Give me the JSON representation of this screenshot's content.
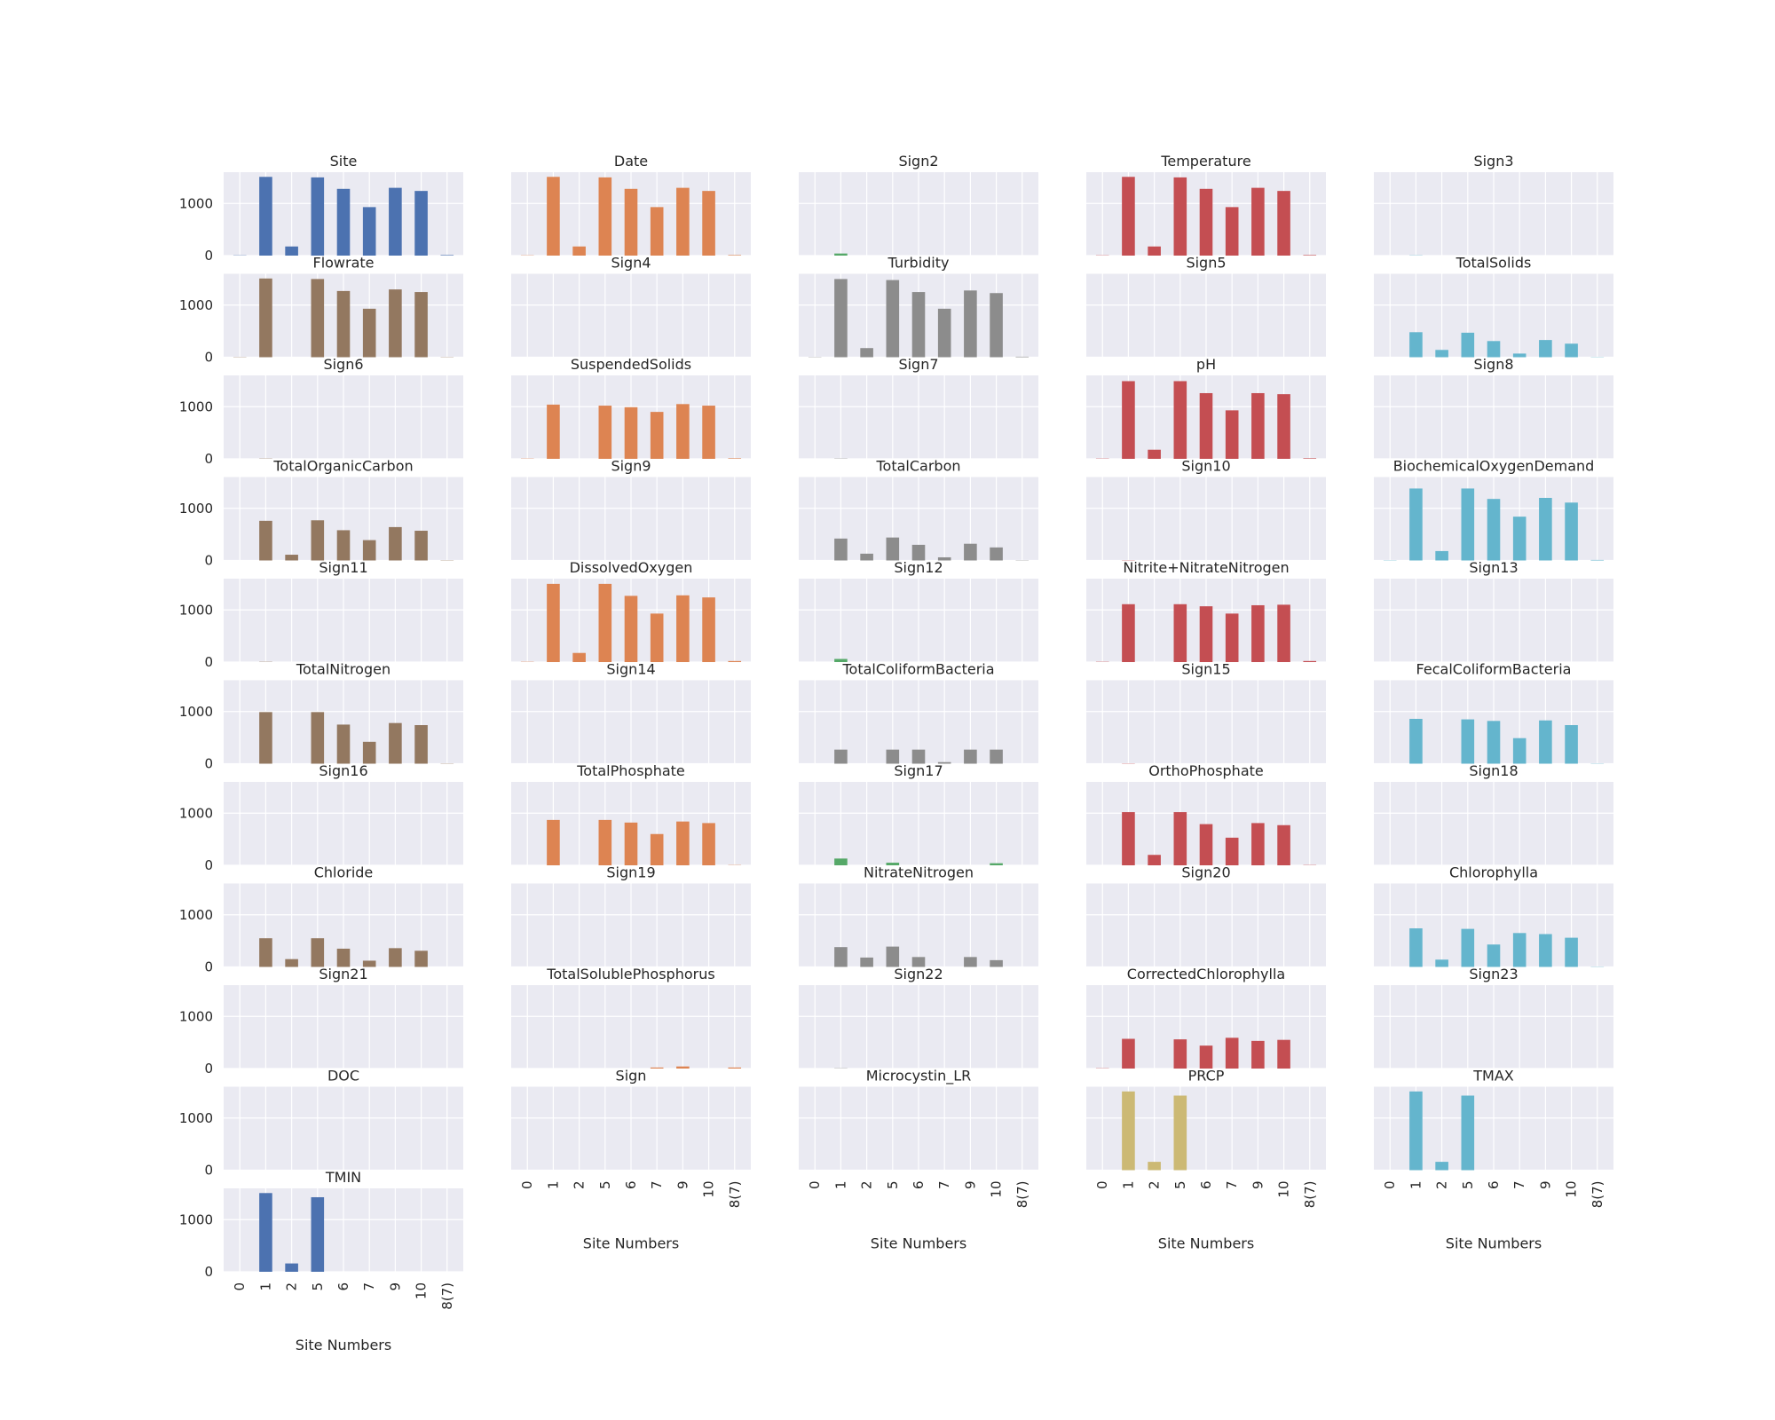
{
  "chart_data": {
    "type": "bar",
    "categories": [
      "0",
      "1",
      "2",
      "5",
      "6",
      "7",
      "9",
      "10",
      "8(7)"
    ],
    "yticks": [
      0,
      1000
    ],
    "ylim": [
      0,
      1600
    ],
    "xlabel": "Site Numbers",
    "palette": [
      "#4c72b0",
      "#dd8452",
      "#55a868",
      "#c44e52",
      "#8172b3",
      "#937860",
      "#da8bc3",
      "#8c8c8c",
      "#ccb974",
      "#64b5cd"
    ],
    "panels": [
      {
        "title": "Site",
        "color": "#4c72b0",
        "values": [
          5,
          1510,
          175,
          1500,
          1280,
          930,
          1300,
          1240,
          10
        ]
      },
      {
        "title": "Date",
        "color": "#dd8452",
        "values": [
          5,
          1510,
          175,
          1500,
          1280,
          930,
          1300,
          1240,
          10
        ]
      },
      {
        "title": "Sign2",
        "color": "#55a868",
        "values": [
          0,
          40,
          0,
          0,
          0,
          0,
          0,
          0,
          0
        ]
      },
      {
        "title": "Temperature",
        "color": "#c44e52",
        "values": [
          5,
          1510,
          175,
          1500,
          1280,
          930,
          1300,
          1240,
          10
        ]
      },
      {
        "title": "Sign3",
        "color": "#64b5cd",
        "values": [
          0,
          5,
          0,
          0,
          0,
          0,
          0,
          0,
          0
        ]
      },
      {
        "title": "Flowrate",
        "color": "#937860",
        "values": [
          5,
          1510,
          0,
          1500,
          1270,
          930,
          1300,
          1250,
          5
        ]
      },
      {
        "title": "Sign4",
        "color": "#dd8452",
        "values": [
          0,
          0,
          0,
          0,
          0,
          0,
          0,
          0,
          0
        ]
      },
      {
        "title": "Turbidity",
        "color": "#8c8c8c",
        "values": [
          5,
          1500,
          175,
          1480,
          1250,
          930,
          1280,
          1230,
          10
        ]
      },
      {
        "title": "Sign5",
        "color": "#c44e52",
        "values": [
          0,
          0,
          0,
          0,
          0,
          0,
          0,
          0,
          0
        ]
      },
      {
        "title": "TotalSolids",
        "color": "#64b5cd",
        "values": [
          0,
          480,
          140,
          470,
          310,
          70,
          330,
          260,
          5
        ]
      },
      {
        "title": "Sign6",
        "color": "#937860",
        "values": [
          0,
          5,
          0,
          0,
          0,
          0,
          0,
          0,
          0
        ]
      },
      {
        "title": "SuspendedSolids",
        "color": "#dd8452",
        "values": [
          5,
          1040,
          0,
          1020,
          990,
          900,
          1050,
          1020,
          10
        ]
      },
      {
        "title": "Sign7",
        "color": "#8c8c8c",
        "values": [
          0,
          5,
          0,
          0,
          0,
          0,
          0,
          0,
          0
        ]
      },
      {
        "title": "pH",
        "color": "#c44e52",
        "values": [
          5,
          1490,
          175,
          1490,
          1260,
          930,
          1260,
          1240,
          10
        ]
      },
      {
        "title": "Sign8",
        "color": "#64b5cd",
        "values": [
          0,
          0,
          0,
          0,
          0,
          0,
          0,
          0,
          0
        ]
      },
      {
        "title": "TotalOrganicCarbon",
        "color": "#937860",
        "values": [
          0,
          760,
          110,
          770,
          580,
          390,
          640,
          570,
          5
        ]
      },
      {
        "title": "Sign9",
        "color": "#dd8452",
        "values": [
          0,
          0,
          0,
          0,
          0,
          0,
          0,
          0,
          0
        ]
      },
      {
        "title": "TotalCarbon",
        "color": "#8c8c8c",
        "values": [
          0,
          420,
          130,
          440,
          300,
          60,
          320,
          250,
          5
        ]
      },
      {
        "title": "Sign10",
        "color": "#c44e52",
        "values": [
          0,
          5,
          0,
          0,
          0,
          0,
          0,
          0,
          0
        ]
      },
      {
        "title": "BiochemicalOxygenDemand",
        "color": "#64b5cd",
        "values": [
          5,
          1380,
          180,
          1380,
          1180,
          840,
          1200,
          1110,
          10
        ]
      },
      {
        "title": "Sign11",
        "color": "#937860",
        "values": [
          0,
          5,
          0,
          0,
          0,
          0,
          0,
          0,
          0
        ]
      },
      {
        "title": "DissolvedOxygen",
        "color": "#dd8452",
        "values": [
          5,
          1500,
          175,
          1500,
          1270,
          930,
          1280,
          1240,
          20
        ]
      },
      {
        "title": "Sign12",
        "color": "#55a868",
        "values": [
          0,
          60,
          0,
          0,
          0,
          0,
          0,
          0,
          0
        ]
      },
      {
        "title": "Nitrite+NitrateNitrogen",
        "color": "#c44e52",
        "values": [
          5,
          1110,
          0,
          1110,
          1070,
          930,
          1090,
          1100,
          20
        ]
      },
      {
        "title": "Sign13",
        "color": "#64b5cd",
        "values": [
          0,
          0,
          0,
          0,
          0,
          0,
          0,
          0,
          0
        ]
      },
      {
        "title": "TotalNitrogen",
        "color": "#937860",
        "values": [
          0,
          990,
          0,
          990,
          750,
          420,
          780,
          740,
          5
        ]
      },
      {
        "title": "Sign14",
        "color": "#dd8452",
        "values": [
          0,
          0,
          0,
          0,
          0,
          0,
          0,
          0,
          0
        ]
      },
      {
        "title": "TotalColiformBacteria",
        "color": "#8c8c8c",
        "values": [
          0,
          270,
          0,
          270,
          270,
          30,
          270,
          270,
          0
        ]
      },
      {
        "title": "Sign15",
        "color": "#c44e52",
        "values": [
          0,
          5,
          0,
          0,
          0,
          0,
          0,
          0,
          0
        ]
      },
      {
        "title": "FecalColiformBacteria",
        "color": "#64b5cd",
        "values": [
          0,
          860,
          0,
          850,
          820,
          490,
          830,
          740,
          5
        ]
      },
      {
        "title": "Sign16",
        "color": "#937860",
        "values": [
          0,
          0,
          0,
          0,
          0,
          0,
          0,
          0,
          0
        ]
      },
      {
        "title": "TotalPhosphate",
        "color": "#dd8452",
        "values": [
          0,
          870,
          0,
          870,
          820,
          600,
          840,
          810,
          5
        ]
      },
      {
        "title": "Sign17",
        "color": "#55a868",
        "values": [
          0,
          130,
          0,
          50,
          0,
          0,
          0,
          40,
          0
        ]
      },
      {
        "title": "OrthoPhosphate",
        "color": "#c44e52",
        "values": [
          0,
          1020,
          200,
          1020,
          790,
          530,
          810,
          770,
          5
        ]
      },
      {
        "title": "Sign18",
        "color": "#64b5cd",
        "values": [
          0,
          0,
          0,
          0,
          0,
          0,
          0,
          0,
          0
        ]
      },
      {
        "title": "Chloride",
        "color": "#937860",
        "values": [
          0,
          550,
          150,
          550,
          350,
          120,
          360,
          310,
          0
        ]
      },
      {
        "title": "Sign19",
        "color": "#dd8452",
        "values": [
          0,
          0,
          0,
          0,
          0,
          0,
          0,
          0,
          0
        ]
      },
      {
        "title": "NitrateNitrogen",
        "color": "#8c8c8c",
        "values": [
          0,
          380,
          180,
          390,
          190,
          0,
          190,
          130,
          0
        ]
      },
      {
        "title": "Sign20",
        "color": "#c44e52",
        "values": [
          0,
          0,
          0,
          0,
          0,
          0,
          0,
          0,
          0
        ]
      },
      {
        "title": "Chlorophylla",
        "color": "#64b5cd",
        "values": [
          0,
          740,
          140,
          730,
          430,
          650,
          630,
          560,
          5
        ]
      },
      {
        "title": "Sign21",
        "color": "#937860",
        "values": [
          0,
          0,
          0,
          0,
          0,
          0,
          0,
          0,
          0
        ]
      },
      {
        "title": "TotalSolublePhosphorus",
        "color": "#dd8452",
        "values": [
          0,
          0,
          0,
          0,
          0,
          20,
          40,
          0,
          20
        ]
      },
      {
        "title": "Sign22",
        "color": "#8c8c8c",
        "values": [
          0,
          5,
          0,
          0,
          0,
          0,
          0,
          0,
          0
        ]
      },
      {
        "title": "CorrectedChlorophylla",
        "color": "#c44e52",
        "values": [
          5,
          570,
          0,
          560,
          440,
          590,
          530,
          550,
          0
        ]
      },
      {
        "title": "Sign23",
        "color": "#64b5cd",
        "values": [
          0,
          0,
          0,
          0,
          0,
          0,
          0,
          0,
          0
        ]
      },
      {
        "title": "DOC",
        "color": "#937860",
        "values": [
          0,
          0,
          0,
          0,
          0,
          0,
          0,
          0,
          0
        ]
      },
      {
        "title": "Sign",
        "color": "#dd8452",
        "values": [
          0,
          0,
          0,
          0,
          0,
          0,
          0,
          0,
          0
        ]
      },
      {
        "title": "Microcystin_LR",
        "color": "#8c8c8c",
        "values": [
          0,
          0,
          0,
          0,
          0,
          0,
          0,
          0,
          0
        ]
      },
      {
        "title": "PRCP",
        "color": "#ccb974",
        "values": [
          0,
          1510,
          160,
          1430,
          0,
          0,
          0,
          0,
          0
        ]
      },
      {
        "title": "TMAX",
        "color": "#64b5cd",
        "values": [
          0,
          1510,
          160,
          1430,
          0,
          0,
          0,
          0,
          0
        ]
      },
      {
        "title": "TMIN",
        "color": "#4c72b0",
        "values": [
          0,
          1510,
          160,
          1430,
          0,
          0,
          0,
          0,
          0
        ]
      }
    ]
  }
}
